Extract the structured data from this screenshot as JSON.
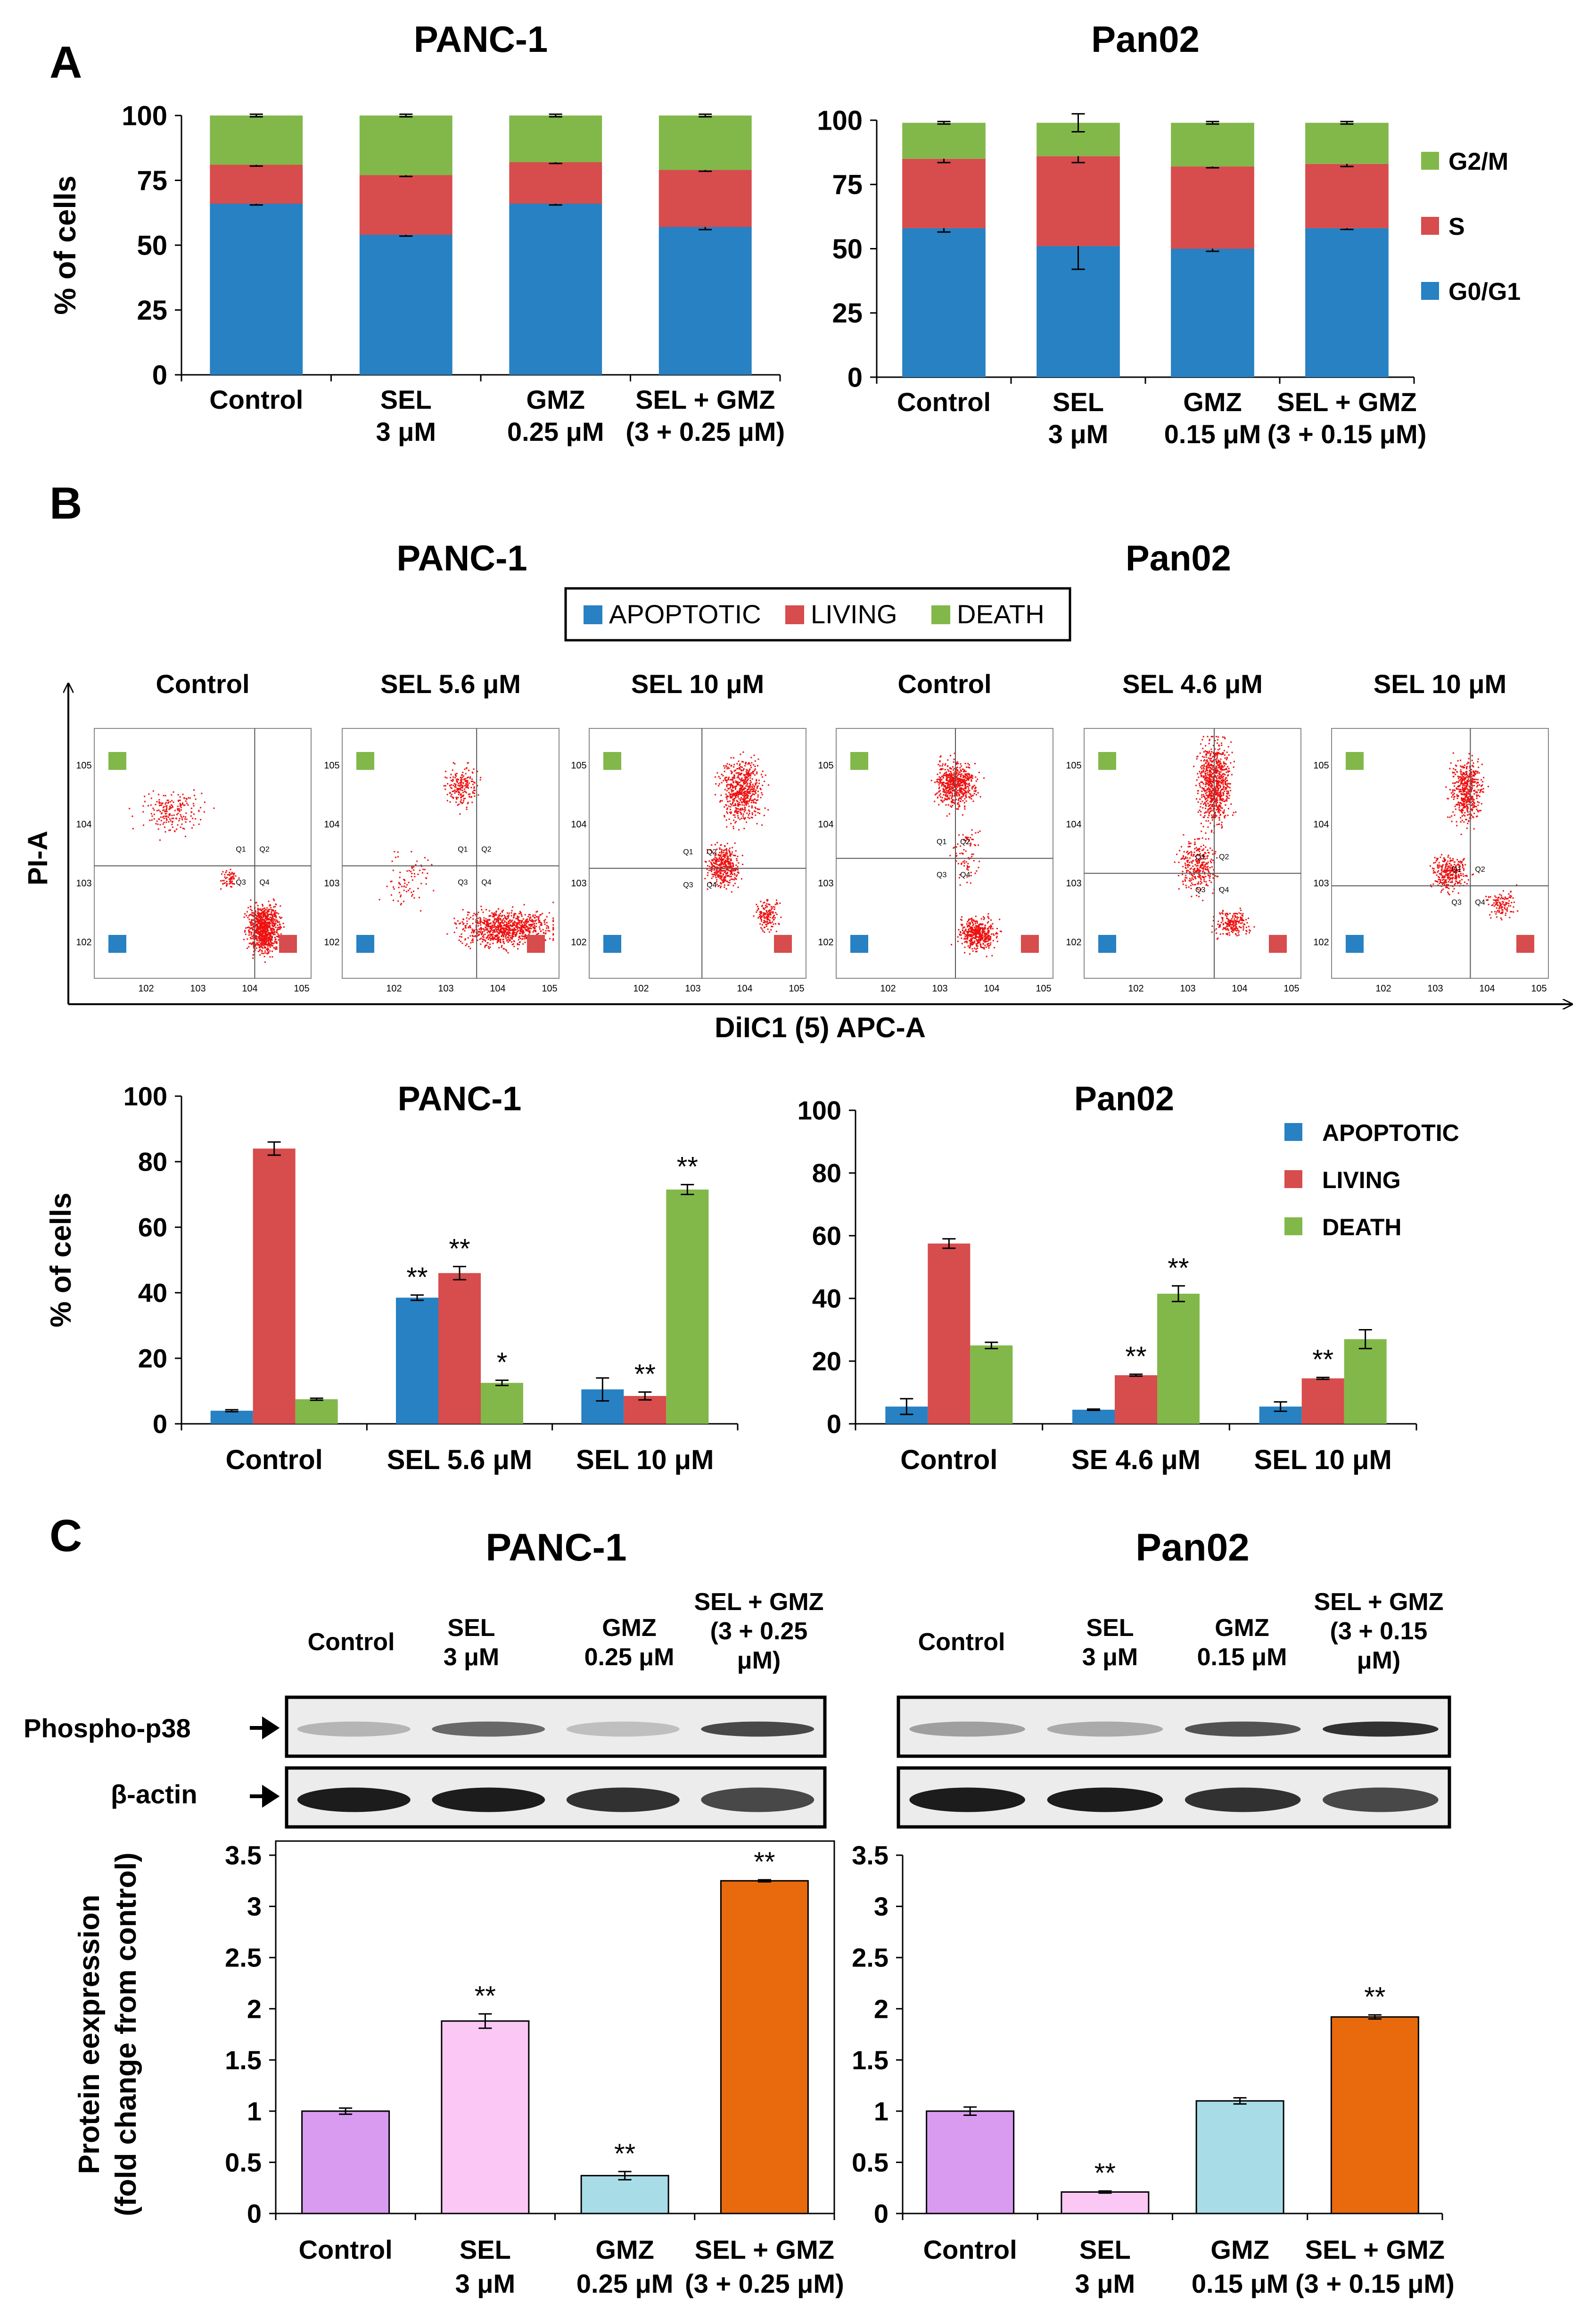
{
  "colors": {
    "g0g1": "#2781c2",
    "s": "#d74c4c",
    "g2m": "#82b84a",
    "apoptotic": "#2781c2",
    "living": "#d74c4c",
    "death": "#82b84a",
    "dots": "#ee1111",
    "control_bar": "#d99bf0",
    "sel_bar": "#fbc8f5",
    "gmz_bar": "#a8dde8",
    "combo_bar": "#e86a0c"
  },
  "panel_letters": [
    "A",
    "B",
    "C"
  ],
  "chart_data": [
    {
      "id": "A_panc1",
      "type": "bar",
      "stacked": true,
      "title": "PANC-1",
      "ylabel": "% of cells",
      "ylim": [
        0,
        100
      ],
      "yticks": [
        0,
        25,
        50,
        75,
        100
      ],
      "categories": [
        [
          "Control"
        ],
        [
          "SEL",
          "3 μM"
        ],
        [
          "GMZ",
          "0.25 μM"
        ],
        [
          "SEL + GMZ",
          "(3 + 0.25 μM)"
        ]
      ],
      "series": [
        {
          "name": "G0/G1",
          "values": [
            66,
            54,
            66,
            57
          ],
          "errors": [
            0.5,
            0.5,
            0.5,
            1
          ]
        },
        {
          "name": "S",
          "values": [
            15,
            23,
            16,
            22
          ],
          "errors": [
            0.5,
            0.5,
            0.5,
            0.5
          ]
        },
        {
          "name": "G2/M",
          "values": [
            19,
            23,
            18,
            21
          ],
          "errors": [
            0.5,
            0.5,
            0.5,
            0.5
          ]
        }
      ]
    },
    {
      "id": "A_pan02",
      "type": "bar",
      "stacked": true,
      "title": "Pan02",
      "ylabel": "",
      "ylim": [
        0,
        100
      ],
      "yticks": [
        0,
        25,
        50,
        75,
        100
      ],
      "categories": [
        [
          "Control"
        ],
        [
          "SEL",
          "3 μM"
        ],
        [
          "GMZ",
          "0.15 μM"
        ],
        [
          "SEL + GMZ",
          "(3 + 0.15 μM)"
        ]
      ],
      "series": [
        {
          "name": "G0/G1",
          "values": [
            58,
            51,
            50,
            58
          ],
          "errors": [
            1.5,
            9,
            1,
            0.5
          ]
        },
        {
          "name": "S",
          "values": [
            27,
            35,
            32,
            25
          ],
          "errors": [
            1.5,
            2.5,
            0.5,
            1
          ]
        },
        {
          "name": "G2/M",
          "values": [
            14,
            13,
            17,
            16
          ],
          "errors": [
            0.5,
            3.5,
            0.5,
            0.5
          ]
        }
      ],
      "legend": [
        "G2/M",
        "S",
        "G0/G1"
      ]
    },
    {
      "id": "B_panc1",
      "type": "bar",
      "title": "PANC-1",
      "ylabel": "% of cells",
      "ylim": [
        0,
        100
      ],
      "yticks": [
        0,
        20,
        40,
        60,
        80,
        100
      ],
      "categories": [
        [
          "Control"
        ],
        [
          "SEL 5.6 μM"
        ],
        [
          "SEL 10 μM"
        ]
      ],
      "series": [
        {
          "name": "APOPTOTIC",
          "values": [
            4,
            38.5,
            10.5
          ],
          "errors": [
            0.3,
            0.8,
            3.5
          ],
          "marks": [
            "",
            "**",
            ""
          ]
        },
        {
          "name": "LIVING",
          "values": [
            84,
            46,
            8.5
          ],
          "errors": [
            2,
            2,
            1.2
          ],
          "marks": [
            "",
            "**",
            "**"
          ]
        },
        {
          "name": "DEATH",
          "values": [
            7.5,
            12.5,
            71.5
          ],
          "errors": [
            0.3,
            0.8,
            1.5
          ],
          "marks": [
            "",
            "*",
            "**"
          ]
        }
      ]
    },
    {
      "id": "B_pan02",
      "type": "bar",
      "title": "Pan02",
      "ylabel": "",
      "ylim": [
        0,
        100
      ],
      "yticks": [
        0,
        20,
        40,
        60,
        80,
        100
      ],
      "categories": [
        [
          "Control"
        ],
        [
          "SE 4.6 μM"
        ],
        [
          "SEL 10 μM"
        ]
      ],
      "series": [
        {
          "name": "APOPTOTIC",
          "values": [
            5.5,
            4.5,
            5.5
          ],
          "errors": [
            2.5,
            0.2,
            1.5
          ],
          "marks": [
            "",
            "",
            ""
          ]
        },
        {
          "name": "LIVING",
          "values": [
            57.5,
            15.5,
            14.5
          ],
          "errors": [
            1.5,
            0.3,
            0.3
          ],
          "marks": [
            "",
            "**",
            "**"
          ]
        },
        {
          "name": "DEATH",
          "values": [
            25,
            41.5,
            27
          ],
          "errors": [
            1,
            2.5,
            3
          ],
          "marks": [
            "",
            "**",
            ""
          ]
        }
      ],
      "legend": [
        "APOPTOTIC",
        "LIVING",
        "DEATH"
      ]
    },
    {
      "id": "C_panc1",
      "type": "bar",
      "title": "",
      "ylabel": [
        "Protein eexpression",
        "(fold change from control)"
      ],
      "ylim": [
        0,
        3.5
      ],
      "yticks": [
        0,
        0.5,
        1,
        1.5,
        2,
        2.5,
        3,
        3.5
      ],
      "categories": [
        [
          "Control"
        ],
        [
          "SEL",
          "3 μM"
        ],
        [
          "GMZ",
          "0.25 μM"
        ],
        [
          "SEL + GMZ",
          "(3 + 0.25 μM)"
        ]
      ],
      "series": [
        {
          "name": "Phospho-p38",
          "values": [
            1.0,
            1.88,
            0.37,
            3.25
          ],
          "errors": [
            0.03,
            0.07,
            0.04,
            0.01
          ],
          "marks": [
            "",
            "**",
            "**",
            "**"
          ]
        }
      ]
    },
    {
      "id": "C_pan02",
      "type": "bar",
      "title": "",
      "ylabel": "",
      "ylim": [
        0,
        3.5
      ],
      "yticks": [
        0,
        0.5,
        1,
        1.5,
        2,
        2.5,
        3,
        3.5
      ],
      "categories": [
        [
          "Control"
        ],
        [
          "SEL",
          "3 μM"
        ],
        [
          "GMZ",
          "0.15 μM"
        ],
        [
          "SEL + GMZ",
          "(3 + 0.15 μM)"
        ]
      ],
      "series": [
        {
          "name": "Phospho-p38",
          "values": [
            1.0,
            0.21,
            1.1,
            1.92
          ],
          "errors": [
            0.04,
            0.01,
            0.03,
            0.02
          ],
          "marks": [
            "",
            "**",
            "",
            "**"
          ]
        }
      ]
    }
  ],
  "flow": {
    "titles": [
      "PANC-1",
      "Pan02"
    ],
    "legend": [
      "APOPTOTIC",
      "LIVING",
      "DEATH"
    ],
    "plots": [
      "Control",
      "SEL 5.6 μM",
      "SEL 10 μM",
      "Control",
      "SEL 4.6 μM",
      "SEL 10 μM"
    ],
    "xlabel": "DiIC1 (5) APC-A",
    "ylabel": "PI-A",
    "tick_exp": [
      "2",
      "3",
      "4",
      "5"
    ],
    "quadrants": [
      "Q1",
      "Q2",
      "Q3",
      "Q4"
    ]
  },
  "western": {
    "titles": [
      "PANC-1",
      "Pan02"
    ],
    "columns": [
      [
        [
          "Control"
        ],
        [
          "SEL",
          "3 μM"
        ],
        [
          "GMZ",
          "0.25 μM"
        ],
        [
          "SEL + GMZ",
          "(3 + 0.25",
          "μM)"
        ]
      ],
      [
        [
          "Control"
        ],
        [
          "SEL",
          "3 μM"
        ],
        [
          "GMZ",
          "0.15 μM"
        ],
        [
          "SEL + GMZ",
          "(3 + 0.15",
          "μM)"
        ]
      ]
    ],
    "bands": [
      "Phospho-p38",
      "β-actin"
    ]
  }
}
